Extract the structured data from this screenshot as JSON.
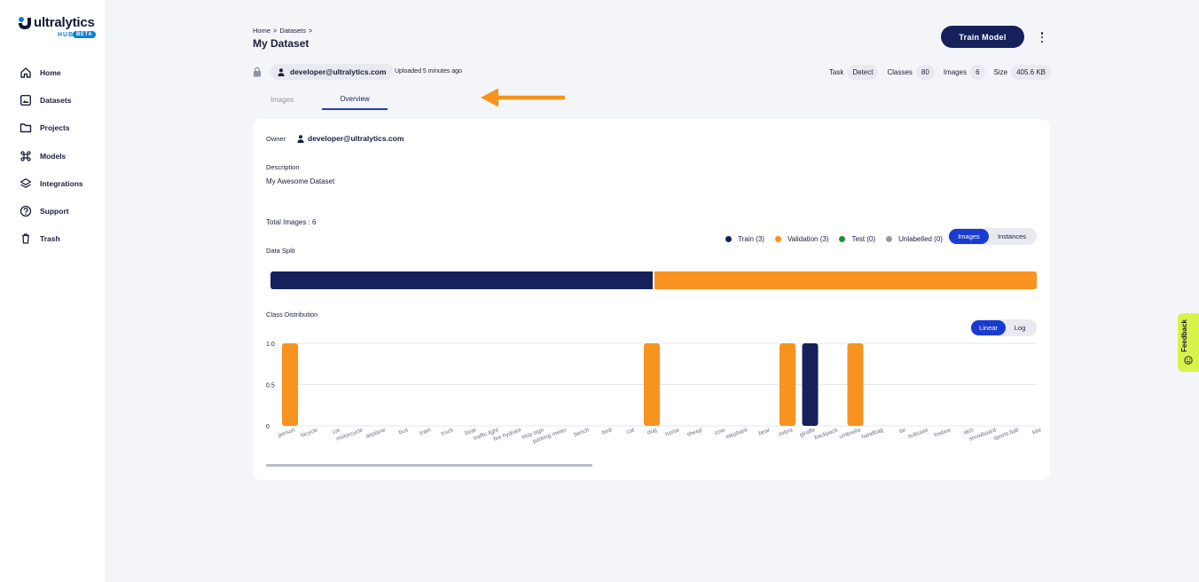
{
  "brand": {
    "name": "ultralytics",
    "hub": "HUB",
    "badge": "BETA"
  },
  "sidebar": {
    "items": [
      {
        "label": "Home",
        "icon": "home-icon"
      },
      {
        "label": "Datasets",
        "icon": "datasets-icon"
      },
      {
        "label": "Projects",
        "icon": "folder-icon"
      },
      {
        "label": "Models",
        "icon": "command-icon"
      },
      {
        "label": "Integrations",
        "icon": "layers-icon"
      },
      {
        "label": "Support",
        "icon": "help-icon"
      },
      {
        "label": "Trash",
        "icon": "trash-icon"
      }
    ]
  },
  "header": {
    "breadcrumb": [
      "Home",
      ">",
      "Datasets",
      ">"
    ],
    "title": "My Dataset",
    "train_label": "Train Model"
  },
  "meta": {
    "owner": "developer@ultralytics.com",
    "uploaded": "Uploaded 5 minutes ago",
    "task_label": "Task",
    "task_value": "Detect",
    "classes_label": "Classes",
    "classes_value": "80",
    "images_label": "Images",
    "images_value": "6",
    "size_label": "Size",
    "size_value": "405.6 KB"
  },
  "tabs": {
    "images": "Images",
    "overview": "Overview"
  },
  "overview": {
    "owner_label": "Owner",
    "owner_value": "developer@ultralytics.com",
    "description_label": "Description",
    "description_value": "My Awesome Dataset",
    "total_images": "Total Images : 6",
    "data_split_label": "Data Split",
    "class_distribution_label": "Class Distribution"
  },
  "legend": [
    {
      "label": "Train (3)",
      "color": "#16215c"
    },
    {
      "label": "Validation (3)",
      "color": "#f7931e"
    },
    {
      "label": "Test (0)",
      "color": "#1e8e3e"
    },
    {
      "label": "Unlabelled (0)",
      "color": "#9b9b9b"
    }
  ],
  "split_toggle": {
    "images": "Images",
    "instances": "Instances"
  },
  "scale_toggle": {
    "linear": "Linear",
    "log": "Log"
  },
  "split": {
    "train": 3,
    "validation": 3,
    "test": 0,
    "unlabelled": 0,
    "train_color": "#16215c",
    "validation_color": "#f7931e"
  },
  "chart_data": {
    "type": "bar",
    "title": "Class Distribution",
    "xlabel": "",
    "ylabel": "",
    "ylim": [
      0,
      1.0
    ],
    "yticks": [
      "1.0",
      "0.5",
      "0"
    ],
    "grid": true,
    "categories": [
      "person",
      "bicycle",
      "car",
      "motorcycle",
      "airplane",
      "bus",
      "train",
      "truck",
      "boat",
      "traffic light",
      "fire hydrant",
      "stop sign",
      "parking meter",
      "bench",
      "bird",
      "cat",
      "dog",
      "horse",
      "sheep",
      "cow",
      "elephant",
      "bear",
      "zebra",
      "giraffe",
      "backpack",
      "umbrella",
      "handbag",
      "tie",
      "suitcase",
      "frisbee",
      "skis",
      "snowboard",
      "sports ball",
      "kite",
      "baseball bat"
    ],
    "values": [
      1,
      0,
      0,
      0,
      0,
      0,
      0,
      0,
      0,
      0,
      0,
      0,
      0,
      0,
      0,
      0,
      1,
      0,
      0,
      0,
      0,
      0,
      1,
      1,
      0,
      1,
      0,
      0,
      0,
      0,
      0,
      0,
      0,
      0,
      0
    ],
    "bar_colors": [
      "#f7931e",
      "",
      "",
      "",
      "",
      "",
      "",
      "",
      "",
      "",
      "",
      "",
      "",
      "",
      "",
      "",
      "#f7931e",
      "",
      "",
      "",
      "",
      "",
      "#f7931e",
      "#16215c",
      "",
      "#f7931e",
      "",
      "",
      "",
      "",
      "",
      "",
      "",
      "",
      ""
    ]
  },
  "feedback": {
    "label": "Feedback"
  },
  "colors": {
    "navy": "#16215c",
    "orange": "#f7931e",
    "accent": "#1a3bd1",
    "feedback_bg": "#d9f24a"
  }
}
